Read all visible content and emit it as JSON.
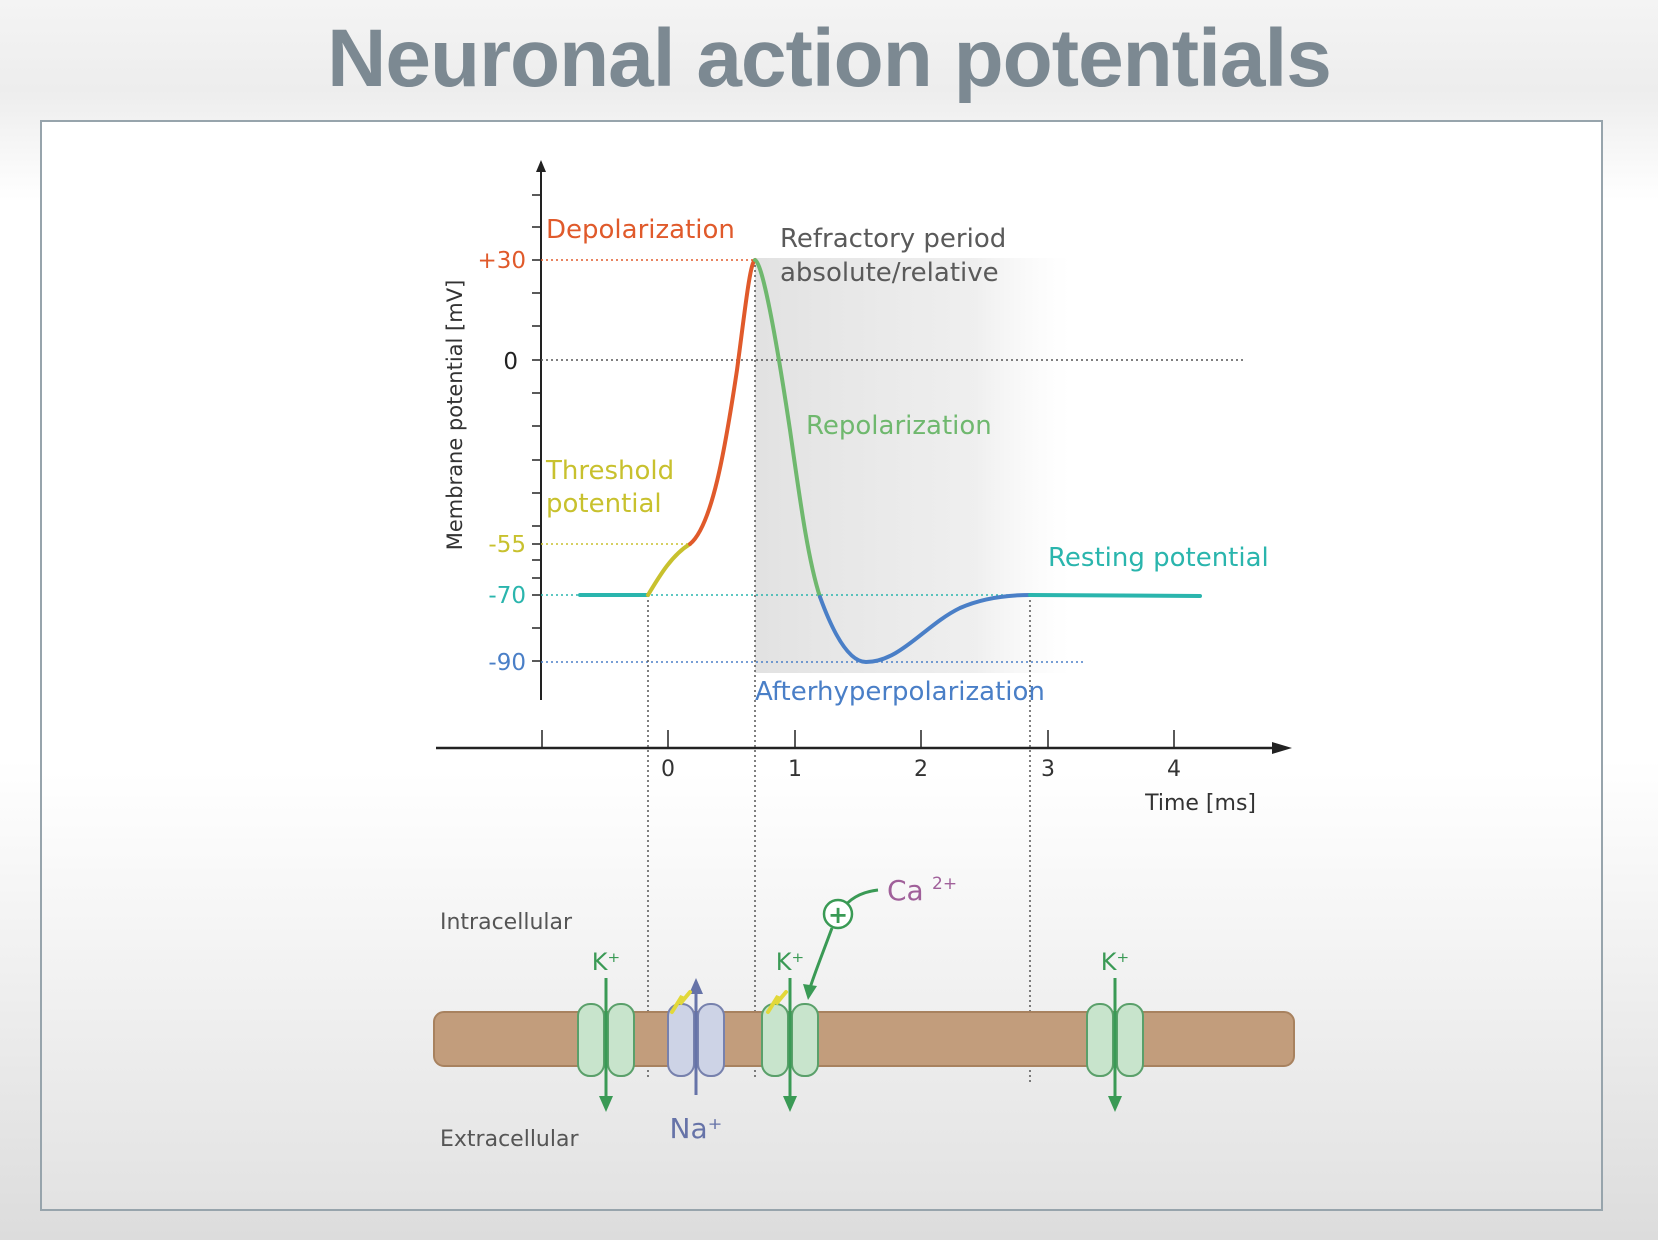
{
  "title": "Neuronal action potentials",
  "colors": {
    "depolarization": "#e05a2b",
    "threshold": "#c8c12e",
    "repolarization": "#6fb86e",
    "afterhyperpolarization": "#4a7fc7",
    "resting": "#2ab5ad",
    "refractory": "#6b6b6b",
    "potassium": "#3a9a55",
    "sodium": "#6673a8",
    "calcium": "#a0609a",
    "membrane": "#c29d7c"
  },
  "graph": {
    "y_axis_label": "Membrane potential  [mV]",
    "x_axis_label": "Time  [ms]",
    "y_ticks": [
      "+30",
      "0",
      "-55",
      "-70",
      "-90"
    ],
    "x_ticks": [
      "0",
      "1",
      "2",
      "3",
      "4"
    ],
    "phases": {
      "depolarization": "Depolarization",
      "refractory_line1": "Refractory period",
      "refractory_line2": "absolute/relative",
      "repolarization": "Repolarization",
      "threshold_line1": "Threshold",
      "threshold_line2": "potential",
      "resting": "Resting potential",
      "afterhyperpolarization": "Afterhyperpolarization"
    }
  },
  "membrane": {
    "intracellular": "Intracellular",
    "extracellular": "Extracellular",
    "k_label_1": "K⁺",
    "k_label_2": "K⁺",
    "k_label_3": "K⁺",
    "na_label": "Na⁺",
    "ca_label": "Ca",
    "ca_charge": "2+",
    "plus_sign": "+"
  }
}
